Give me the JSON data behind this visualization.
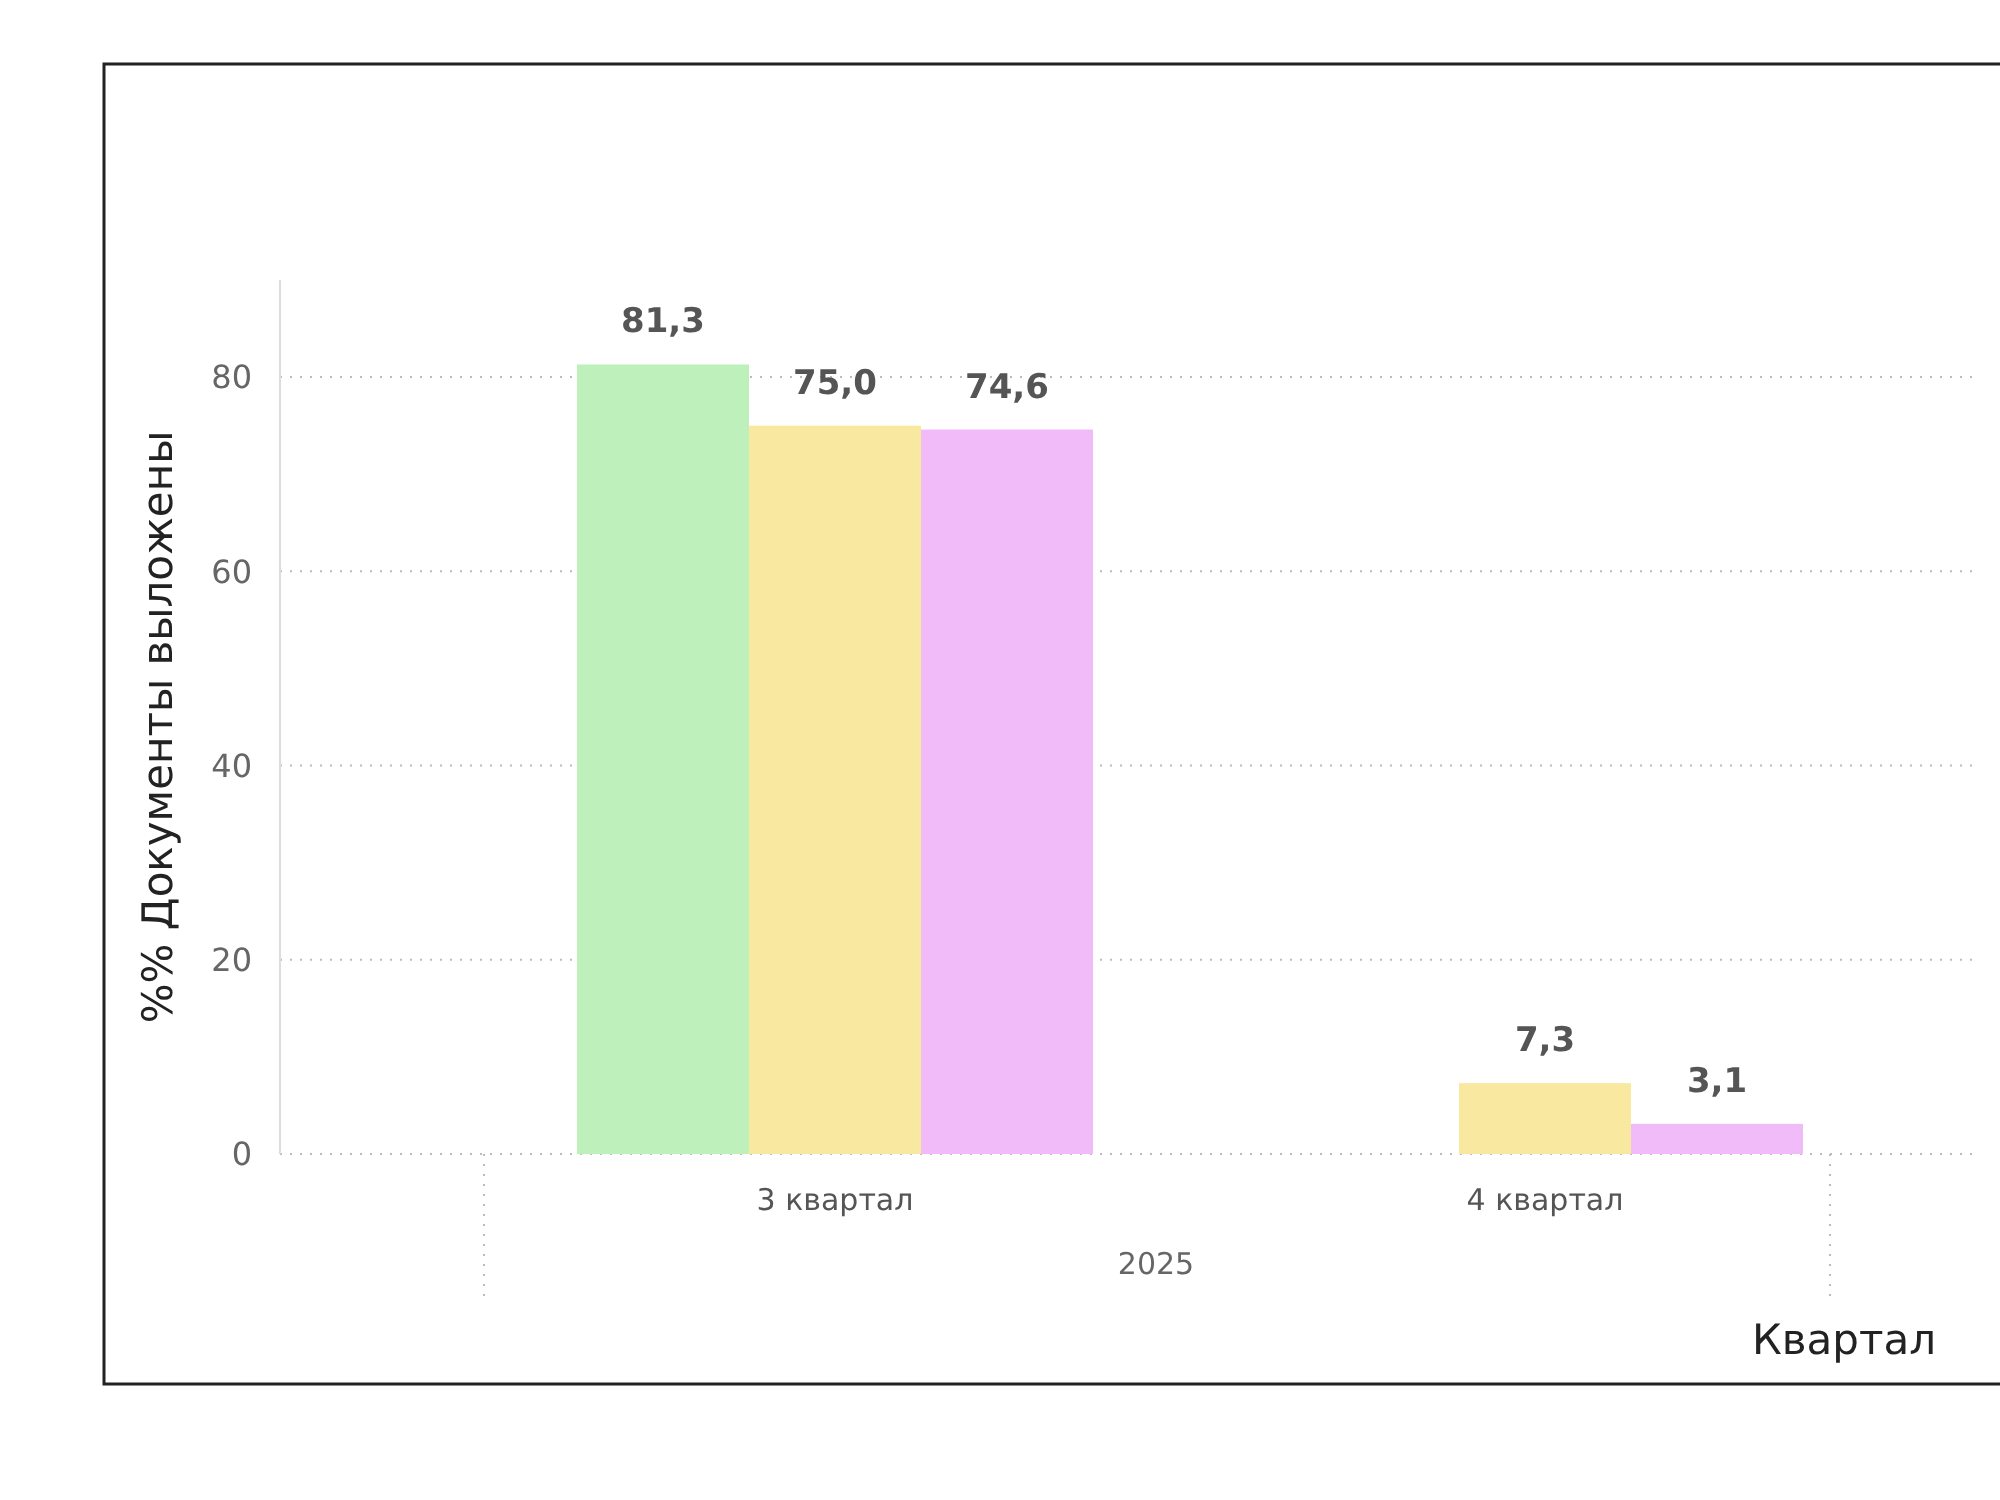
{
  "chart_data": {
    "type": "bar",
    "ylabel": "%% Документы выложены",
    "xlabel": "Квартал",
    "categories": [
      "3 квартал",
      "4 квартал"
    ],
    "annotations": [
      "2025"
    ],
    "series": [
      {
        "color": "#bdf0bb",
        "values": [
          81.3,
          null
        ],
        "value_labels": [
          "81,3",
          null
        ]
      },
      {
        "color": "#f9e9a0",
        "values": [
          75.0,
          7.3
        ],
        "value_labels": [
          "75,0",
          "7,3"
        ]
      },
      {
        "color": "#f0bbf8",
        "values": [
          74.6,
          3.1
        ],
        "value_labels": [
          "74,6",
          "3,1"
        ]
      }
    ],
    "ylim": [
      0,
      90
    ],
    "yticks": [
      0,
      20,
      40,
      60,
      80
    ],
    "grid": "y"
  }
}
